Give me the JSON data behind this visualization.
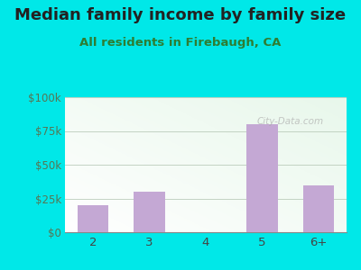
{
  "title": "Median family income by family size",
  "subtitle": "All residents in Firebaugh, CA",
  "categories": [
    "2",
    "3",
    "4",
    "5",
    "6+"
  ],
  "values": [
    20000,
    30000,
    0,
    80000,
    35000
  ],
  "bar_color": "#c4a8d4",
  "outer_bg": "#00e8e8",
  "title_color": "#222222",
  "subtitle_color": "#2e7d32",
  "ytick_color": "#557755",
  "xtick_color": "#444444",
  "ytick_labels": [
    "$0",
    "$25k",
    "$50k",
    "$75k",
    "$100k"
  ],
  "ytick_values": [
    0,
    25000,
    50000,
    75000,
    100000
  ],
  "ylim": [
    0,
    100000
  ],
  "watermark": "City-Data.com",
  "title_fontsize": 13,
  "subtitle_fontsize": 9.5,
  "plot_grad_topleft": "#e8f5e9",
  "plot_grad_bottomright": "#f8fff8",
  "plot_white": "#ffffff"
}
